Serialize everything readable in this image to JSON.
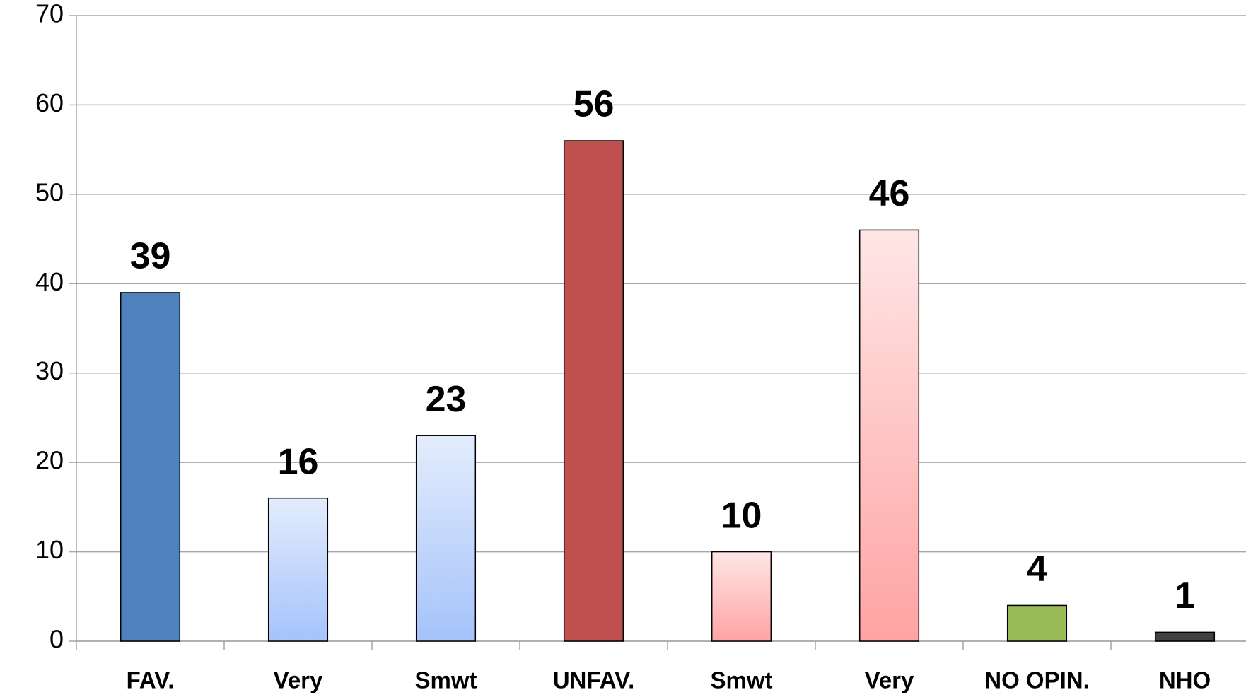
{
  "chart_data": {
    "type": "bar",
    "categories": [
      "FAV.",
      "Very",
      "Smwt",
      "UNFAV.",
      "Smwt",
      "Very",
      "NO OPIN.",
      "NHO"
    ],
    "values": [
      39,
      16,
      23,
      56,
      10,
      46,
      4,
      1
    ],
    "colors": [
      "#4f81bd",
      [
        "#e3ecfc",
        "#a5c3fb"
      ],
      [
        "#e3ecfc",
        "#a5c3fb"
      ],
      "#c0504d",
      [
        "#ffe6e6",
        "#ffa3a3"
      ],
      [
        "#ffe6e6",
        "#ffa3a3"
      ],
      "#9bbb59",
      "#404040"
    ],
    "ylim": [
      0,
      70
    ],
    "yticks": [
      0,
      10,
      20,
      30,
      40,
      50,
      60,
      70
    ],
    "grid": true
  }
}
